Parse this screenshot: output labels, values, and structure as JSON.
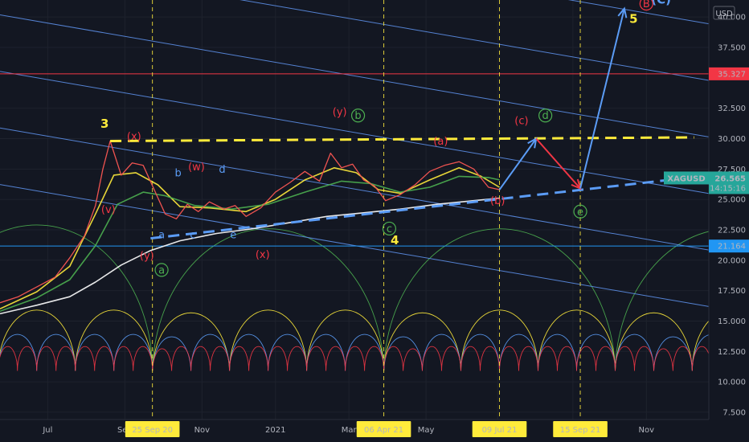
{
  "chart_data": {
    "type": "line",
    "symbol": "XAGUSD",
    "currency": "USD",
    "countdown": "14:15:16",
    "last_price": 26.565,
    "y_ticks": [
      7.5,
      10.0,
      12.5,
      15.0,
      17.5,
      20.0,
      22.5,
      25.0,
      27.5,
      30.0,
      32.5,
      37.5,
      40.0
    ],
    "ylim": [
      6.9,
      41.4
    ],
    "x_ticks": [
      {
        "label": "Jul",
        "t": 0
      },
      {
        "label": "Sep",
        "t": 2.1
      },
      {
        "label": "Nov",
        "t": 4.2
      },
      {
        "label": "2021",
        "t": 6.2
      },
      {
        "label": "Mar",
        "t": 8.2
      },
      {
        "label": "May",
        "t": 10.3
      },
      {
        "label": "Jul",
        "t": 12.25
      },
      {
        "label": "Sep",
        "t": 14.3
      },
      {
        "label": "Nov",
        "t": 16.3
      }
    ],
    "xlim": [
      -1.3,
      18.0
    ],
    "date_markers": [
      {
        "label": "25 Sep 20",
        "t": 2.85
      },
      {
        "label": "06 Apr 21",
        "t": 9.15
      },
      {
        "label": "09 Jul 21",
        "t": 12.3
      },
      {
        "label": "15 Sep 21",
        "t": 14.5
      }
    ],
    "horizontal_levels": [
      {
        "value": 35.327,
        "label": "35.327",
        "color": "#f23645"
      },
      {
        "value": 21.164,
        "label": "21.164",
        "color": "#2196f3"
      }
    ],
    "price_path": [
      [
        -1.3,
        16.5
      ],
      [
        -0.8,
        17.0
      ],
      [
        -0.3,
        17.8
      ],
      [
        0.2,
        18.6
      ],
      [
        0.6,
        20.2
      ],
      [
        1.0,
        22.0
      ],
      [
        1.3,
        24.5
      ],
      [
        1.5,
        27.5
      ],
      [
        1.7,
        29.8
      ],
      [
        2.0,
        27.0
      ],
      [
        2.3,
        28.0
      ],
      [
        2.6,
        27.8
      ],
      [
        2.9,
        25.8
      ],
      [
        3.2,
        23.8
      ],
      [
        3.5,
        23.4
      ],
      [
        3.8,
        24.6
      ],
      [
        4.1,
        24.0
      ],
      [
        4.4,
        24.8
      ],
      [
        4.8,
        24.2
      ],
      [
        5.1,
        24.5
      ],
      [
        5.4,
        23.6
      ],
      [
        5.8,
        24.3
      ],
      [
        6.2,
        25.6
      ],
      [
        6.6,
        26.4
      ],
      [
        7.0,
        27.3
      ],
      [
        7.4,
        26.5
      ],
      [
        7.7,
        28.8
      ],
      [
        8.0,
        27.6
      ],
      [
        8.3,
        27.9
      ],
      [
        8.6,
        26.6
      ],
      [
        8.9,
        26.1
      ],
      [
        9.2,
        24.9
      ],
      [
        9.6,
        25.4
      ],
      [
        10.0,
        26.2
      ],
      [
        10.4,
        27.3
      ],
      [
        10.8,
        27.8
      ],
      [
        11.2,
        28.1
      ],
      [
        11.6,
        27.5
      ],
      [
        12.0,
        26.0
      ],
      [
        12.3,
        25.8
      ]
    ],
    "moving_averages": [
      {
        "color": "#ffeb3b",
        "path": [
          [
            -1.3,
            16.0
          ],
          [
            -0.3,
            17.4
          ],
          [
            0.6,
            19.5
          ],
          [
            1.3,
            23.8
          ],
          [
            1.8,
            27.0
          ],
          [
            2.4,
            27.2
          ],
          [
            3.0,
            26.2
          ],
          [
            3.6,
            24.4
          ],
          [
            4.4,
            24.3
          ],
          [
            5.4,
            24.0
          ],
          [
            6.2,
            25.0
          ],
          [
            7.0,
            26.6
          ],
          [
            7.8,
            27.6
          ],
          [
            8.4,
            27.2
          ],
          [
            9.0,
            25.8
          ],
          [
            9.6,
            25.5
          ],
          [
            10.4,
            26.6
          ],
          [
            11.2,
            27.6
          ],
          [
            11.8,
            26.9
          ],
          [
            12.3,
            26.0
          ]
        ]
      },
      {
        "color": "#4caf50",
        "path": [
          [
            -1.3,
            15.8
          ],
          [
            -0.3,
            16.9
          ],
          [
            0.6,
            18.4
          ],
          [
            1.3,
            21.2
          ],
          [
            1.9,
            24.6
          ],
          [
            2.6,
            25.6
          ],
          [
            3.2,
            25.3
          ],
          [
            4.0,
            24.5
          ],
          [
            5.0,
            24.2
          ],
          [
            6.0,
            24.6
          ],
          [
            7.0,
            25.6
          ],
          [
            8.0,
            26.5
          ],
          [
            8.8,
            26.3
          ],
          [
            9.6,
            25.6
          ],
          [
            10.4,
            26.0
          ],
          [
            11.2,
            26.9
          ],
          [
            12.0,
            26.8
          ],
          [
            12.3,
            26.6
          ]
        ]
      },
      {
        "color": "#ffffff",
        "path": [
          [
            -1.3,
            15.6
          ],
          [
            -0.3,
            16.3
          ],
          [
            0.6,
            17.0
          ],
          [
            1.3,
            18.2
          ],
          [
            2.0,
            19.6
          ],
          [
            2.8,
            20.8
          ],
          [
            3.6,
            21.6
          ],
          [
            4.6,
            22.2
          ],
          [
            5.6,
            22.6
          ],
          [
            6.6,
            23.1
          ],
          [
            7.6,
            23.6
          ],
          [
            8.6,
            23.9
          ],
          [
            9.6,
            24.2
          ],
          [
            10.6,
            24.6
          ],
          [
            11.6,
            24.9
          ],
          [
            12.3,
            25.1
          ]
        ]
      }
    ],
    "channel": {
      "slope": -0.52,
      "intercepts": [
        25.55,
        30.2,
        34.85,
        39.5,
        44.15,
        48.8,
        53.45
      ],
      "color": "#5c8ee6"
    },
    "yellow_resistance": {
      "from": [
        1.7,
        29.8
      ],
      "to": [
        17.6,
        30.1
      ],
      "color": "#ffeb3b"
    },
    "blue_support": {
      "from": [
        2.8,
        21.8
      ],
      "to": [
        17.5,
        26.8
      ],
      "color": "#5b9cf6"
    },
    "projection": [
      [
        12.3,
        25.8
      ],
      [
        13.3,
        30.0
      ],
      [
        14.5,
        25.9
      ],
      [
        15.7,
        40.7
      ]
    ],
    "wave_labels": [
      {
        "text": "3",
        "t": 1.55,
        "v": 30.9,
        "color": "#ffeb3b",
        "bold": true
      },
      {
        "text": "(x)",
        "t": 2.35,
        "v": 29.9,
        "color": "#f23645"
      },
      {
        "text": "b",
        "t": 3.55,
        "v": 26.9,
        "color": "#5b9cf6"
      },
      {
        "text": "(w)",
        "t": 4.05,
        "v": 27.4,
        "color": "#f23645"
      },
      {
        "text": "d",
        "t": 4.75,
        "v": 27.2,
        "color": "#5b9cf6"
      },
      {
        "text": "(v)",
        "t": 1.65,
        "v": 23.9,
        "color": "#f23645"
      },
      {
        "text": "a",
        "t": 3.1,
        "v": 21.8,
        "color": "#5b9cf6"
      },
      {
        "text": "c",
        "t": 3.95,
        "v": 21.8,
        "color": "#5b9cf6"
      },
      {
        "text": "e",
        "t": 5.05,
        "v": 21.8,
        "color": "#5b9cf6"
      },
      {
        "text": "(y)",
        "t": 2.7,
        "v": 20.1,
        "color": "#f23645"
      },
      {
        "text": "(x)",
        "t": 5.85,
        "v": 20.2,
        "color": "#f23645"
      },
      {
        "text": "(y)",
        "t": 7.95,
        "v": 31.9,
        "color": "#f23645"
      },
      {
        "text": "(a)",
        "t": 10.7,
        "v": 29.5,
        "color": "#f23645"
      },
      {
        "text": "4",
        "t": 9.45,
        "v": 21.3,
        "color": "#ffeb3b",
        "bold": true
      },
      {
        "text": "(b)",
        "t": 12.25,
        "v": 24.6,
        "color": "#f23645"
      },
      {
        "text": "(c)",
        "t": 12.9,
        "v": 31.2,
        "color": "#f23645"
      },
      {
        "text": "5",
        "t": 15.95,
        "v": 39.5,
        "color": "#ffeb3b",
        "bold": true
      },
      {
        "text": "(C)",
        "t": 16.7,
        "v": 41.1,
        "color": "#5b9cf6",
        "bold": true
      }
    ],
    "circle_labels": [
      {
        "text": "b",
        "t": 8.45,
        "v": 31.9,
        "color": "#4caf50"
      },
      {
        "text": "a",
        "t": 3.1,
        "v": 19.2,
        "color": "#4caf50"
      },
      {
        "text": "c",
        "t": 9.3,
        "v": 22.6,
        "color": "#4caf50"
      },
      {
        "text": "d",
        "t": 13.55,
        "v": 31.9,
        "color": "#4caf50"
      },
      {
        "text": "e",
        "t": 14.5,
        "v": 24.0,
        "color": "#4caf50"
      },
      {
        "text": "B",
        "t": 16.3,
        "v": 41.1,
        "color": "#f23645"
      }
    ],
    "cycle_arcs": [
      {
        "color": "#4caf50",
        "period": 6.3,
        "start": -3.45,
        "amplitude": 12.0,
        "base": 10.9
      },
      {
        "color": "#ffeb3b",
        "period": 2.1,
        "start": -1.35,
        "amplitude": 5.0,
        "base": 10.9
      },
      {
        "color": "#5b9cf6",
        "period": 1.05,
        "start": -1.35,
        "amplitude": 3.0,
        "base": 10.9
      },
      {
        "color": "#f23645",
        "period": 0.525,
        "start": -1.35,
        "amplitude": 2.0,
        "base": 10.9
      }
    ]
  }
}
